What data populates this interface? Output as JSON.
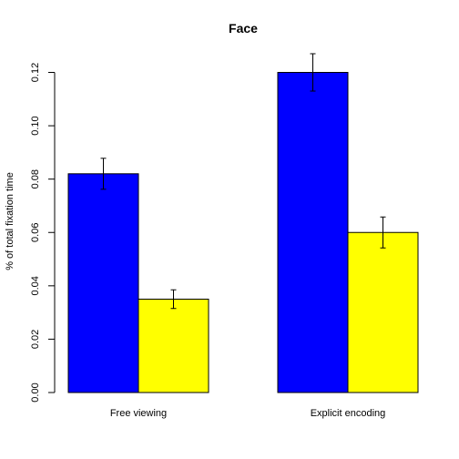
{
  "chart_data": {
    "type": "bar",
    "title": "Face",
    "xlabel": "",
    "ylabel": "% of total fixation time",
    "categories": [
      "Free viewing",
      "Explicit encoding"
    ],
    "series": [
      {
        "color": "#0000ff",
        "values": [
          0.082,
          0.12
        ],
        "errors": [
          0.0058,
          0.007
        ]
      },
      {
        "color": "#ffff00",
        "values": [
          0.035,
          0.06
        ],
        "errors": [
          0.0035,
          0.0058
        ]
      }
    ],
    "ylim": [
      0,
      0.12
    ],
    "yticks": [
      "0.00",
      "0.02",
      "0.04",
      "0.06",
      "0.08",
      "0.10",
      "0.12"
    ],
    "grid": false,
    "legend": "none"
  }
}
